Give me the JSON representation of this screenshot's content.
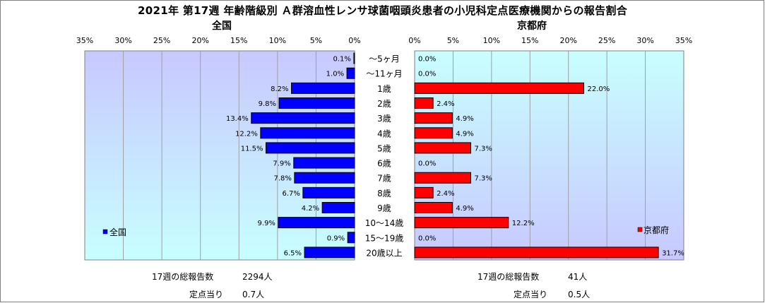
{
  "title": "2021年 第17週 年齢階級別 Ａ群溶血性レンサ球菌咽頭炎患者の小児科定点医療機関からの報告割合",
  "colors": {
    "left_plot_bg_top": "#c8c8ff",
    "left_plot_bg_bottom": "#c8ffff",
    "right_plot_bg_top": "#c8ffff",
    "right_plot_bg_bottom": "#c8c8ff",
    "left_bar": "#0000ff",
    "right_bar": "#ff0000",
    "grid": "#a0a0a0"
  },
  "chart_data": {
    "type": "bar",
    "orientation": "horizontal",
    "categories": [
      "～5ヶ月",
      "～11ヶ月",
      "1歳",
      "2歳",
      "3歳",
      "4歳",
      "5歳",
      "6歳",
      "7歳",
      "8歳",
      "9歳",
      "10～14歳",
      "15～19歳",
      "20歳以上"
    ],
    "xlim": [
      0,
      35
    ],
    "ticks": [
      "0%",
      "5%",
      "10%",
      "15%",
      "20%",
      "25%",
      "30%",
      "35%"
    ],
    "grid": true,
    "panels": [
      {
        "title": "全国",
        "legend": "全国",
        "legend_position": "bottom-left",
        "direction": "reversed",
        "values": [
          0.1,
          1.0,
          8.2,
          9.8,
          13.4,
          12.2,
          11.5,
          7.9,
          7.8,
          6.7,
          4.2,
          9.9,
          0.9,
          6.5
        ],
        "labels": [
          "0.1%",
          "1.0%",
          "8.2%",
          "9.8%",
          "13.4%",
          "12.2%",
          "11.5%",
          "7.9%",
          "7.8%",
          "6.7%",
          "4.2%",
          "9.9%",
          "0.9%",
          "6.5%"
        ]
      },
      {
        "title": "京都府",
        "legend": "京都府",
        "legend_position": "bottom-right",
        "direction": "normal",
        "values": [
          0.0,
          0.0,
          22.0,
          2.4,
          4.9,
          4.9,
          7.3,
          0.0,
          7.3,
          2.4,
          4.9,
          12.2,
          0.0,
          31.7
        ],
        "labels": [
          "0.0%",
          "0.0%",
          "22.0%",
          "2.4%",
          "4.9%",
          "4.9%",
          "7.3%",
          "0.0%",
          "7.3%",
          "2.4%",
          "4.9%",
          "12.2%",
          "0.0%",
          "31.7%"
        ]
      }
    ]
  },
  "footer": {
    "left": {
      "total_label": "17週の総報告数",
      "total_value": "2294人",
      "per_label": "定点当り",
      "per_value": "0.7人"
    },
    "right": {
      "total_label": "17週の総報告数",
      "total_value": "41人",
      "per_label": "定点当り",
      "per_value": "0.5人"
    }
  }
}
